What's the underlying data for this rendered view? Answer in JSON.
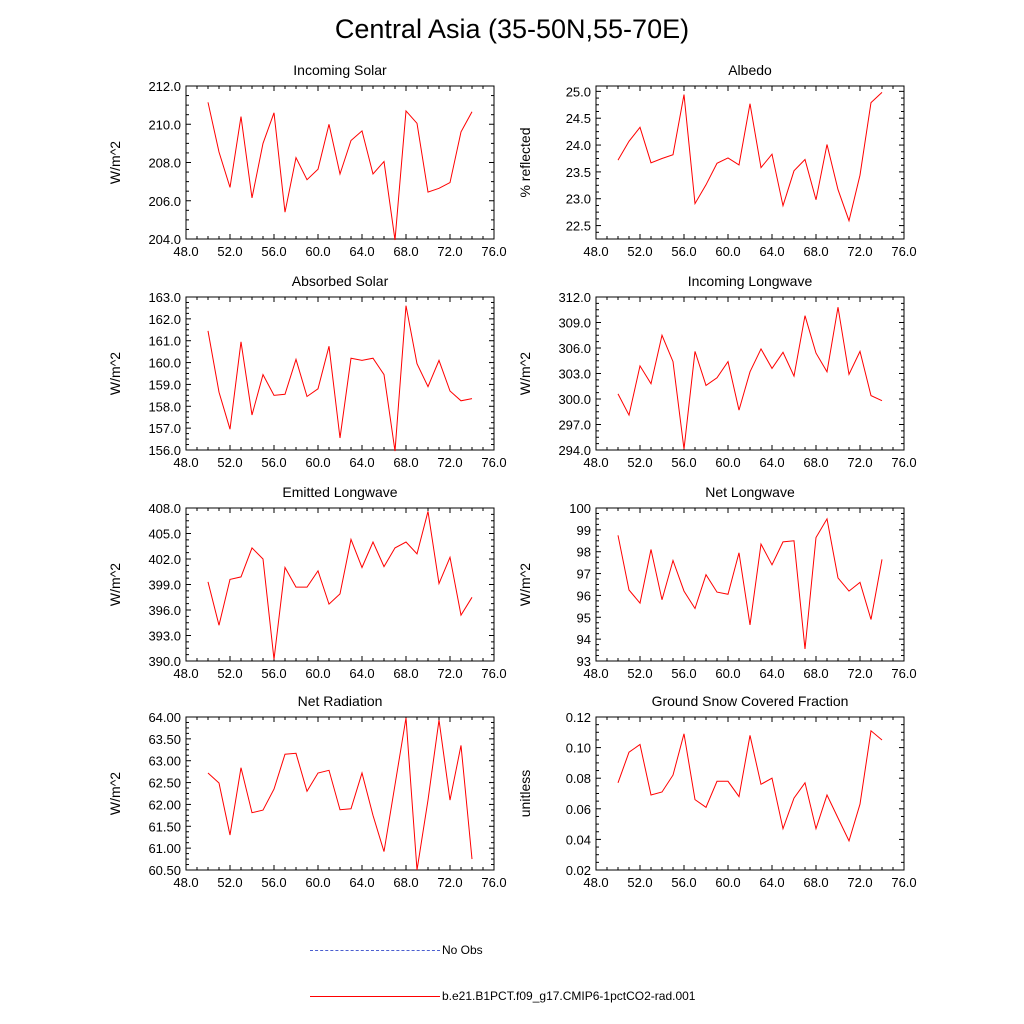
{
  "title": "Central Asia (35-50N,55-70E)",
  "legend": [
    {
      "label": "No Obs",
      "color": "#4a5fd0",
      "style": "dashed"
    },
    {
      "label": "b.e21.B1PCT.f09_g17.CMIP6-1pctCO2-rad.001",
      "color": "#ff0000",
      "style": "solid"
    }
  ],
  "series_color": "#ff0000",
  "chart_data": [
    {
      "type": "line",
      "title": "Incoming Solar",
      "ylabel": "W/m^2",
      "xlabel": "",
      "xlim": [
        48,
        76
      ],
      "ylim": [
        204,
        212
      ],
      "xticks": [
        "48.0",
        "52.0",
        "56.0",
        "60.0",
        "64.0",
        "68.0",
        "72.0",
        "76.0"
      ],
      "yticks": [
        "204.0",
        "206.0",
        "208.0",
        "210.0",
        "212.0"
      ],
      "x": [
        50,
        51,
        52,
        53,
        54,
        55,
        56,
        57,
        58,
        59,
        60,
        61,
        62,
        63,
        64,
        65,
        66,
        67,
        68,
        69,
        70,
        71,
        72,
        73,
        74
      ],
      "values": [
        211.15,
        208.55,
        206.7,
        210.4,
        206.15,
        209.0,
        210.6,
        205.4,
        208.25,
        207.1,
        207.65,
        210.0,
        207.4,
        209.15,
        209.65,
        207.4,
        208.05,
        203.95,
        210.7,
        210.05,
        206.45,
        206.65,
        206.95,
        209.6,
        210.65
      ]
    },
    {
      "type": "line",
      "title": "Albedo",
      "ylabel": "% reflected",
      "xlabel": "",
      "xlim": [
        48,
        76
      ],
      "ylim": [
        22.25,
        25.1
      ],
      "xticks": [
        "48.0",
        "52.0",
        "56.0",
        "60.0",
        "64.0",
        "68.0",
        "72.0",
        "76.0"
      ],
      "yticks": [
        "22.5",
        "23.0",
        "23.5",
        "24.0",
        "24.5",
        "25.0"
      ],
      "x": [
        50,
        51,
        52,
        53,
        54,
        55,
        56,
        57,
        58,
        59,
        60,
        61,
        62,
        63,
        64,
        65,
        66,
        67,
        68,
        69,
        70,
        71,
        72,
        73,
        74
      ],
      "values": [
        23.72,
        24.07,
        24.33,
        23.67,
        23.75,
        23.82,
        24.94,
        22.91,
        23.26,
        23.66,
        23.76,
        23.63,
        24.77,
        23.58,
        23.83,
        22.87,
        23.52,
        23.73,
        22.98,
        24.01,
        23.17,
        22.59,
        23.44,
        24.79,
        24.98
      ]
    },
    {
      "type": "line",
      "title": "Absorbed Solar",
      "ylabel": "W/m^2",
      "xlabel": "",
      "xlim": [
        48,
        76
      ],
      "ylim": [
        156,
        163
      ],
      "xticks": [
        "48.0",
        "52.0",
        "56.0",
        "60.0",
        "64.0",
        "68.0",
        "72.0",
        "76.0"
      ],
      "yticks": [
        "156.0",
        "157.0",
        "158.0",
        "159.0",
        "160.0",
        "161.0",
        "162.0",
        "163.0"
      ],
      "x": [
        50,
        51,
        52,
        53,
        54,
        55,
        56,
        57,
        58,
        59,
        60,
        61,
        62,
        63,
        64,
        65,
        66,
        67,
        68,
        69,
        70,
        71,
        72,
        73,
        74
      ],
      "values": [
        161.45,
        158.65,
        156.95,
        160.95,
        157.6,
        159.45,
        158.5,
        158.55,
        160.15,
        158.45,
        158.8,
        160.75,
        156.55,
        160.2,
        160.1,
        160.2,
        159.45,
        155.95,
        162.6,
        159.95,
        158.9,
        160.1,
        158.7,
        158.25,
        158.35
      ]
    },
    {
      "type": "line",
      "title": "Incoming Longwave",
      "ylabel": "W/m^2",
      "xlabel": "",
      "xlim": [
        48,
        76
      ],
      "ylim": [
        294,
        312
      ],
      "xticks": [
        "48.0",
        "52.0",
        "56.0",
        "60.0",
        "64.0",
        "68.0",
        "72.0",
        "76.0"
      ],
      "yticks": [
        "294.0",
        "297.0",
        "300.0",
        "303.0",
        "306.0",
        "309.0",
        "312.0"
      ],
      "x": [
        50,
        51,
        52,
        53,
        54,
        55,
        56,
        57,
        58,
        59,
        60,
        61,
        62,
        63,
        64,
        65,
        66,
        67,
        68,
        69,
        70,
        71,
        72,
        73,
        74
      ],
      "values": [
        300.6,
        298.1,
        303.9,
        301.8,
        307.5,
        304.4,
        294.1,
        305.6,
        301.6,
        302.5,
        304.4,
        298.7,
        303.2,
        305.9,
        303.6,
        305.5,
        302.7,
        309.8,
        305.4,
        303.2,
        310.8,
        302.9,
        305.6,
        300.4,
        299.8
      ]
    },
    {
      "type": "line",
      "title": "Emitted Longwave",
      "ylabel": "W/m^2",
      "xlabel": "",
      "xlim": [
        48,
        76
      ],
      "ylim": [
        390,
        408
      ],
      "xticks": [
        "48.0",
        "52.0",
        "56.0",
        "60.0",
        "64.0",
        "68.0",
        "72.0",
        "76.0"
      ],
      "yticks": [
        "390.0",
        "393.0",
        "396.0",
        "399.0",
        "402.0",
        "405.0",
        "408.0"
      ],
      "x": [
        50,
        51,
        52,
        53,
        54,
        55,
        56,
        57,
        58,
        59,
        60,
        61,
        62,
        63,
        64,
        65,
        66,
        67,
        68,
        69,
        70,
        71,
        72,
        73,
        74
      ],
      "values": [
        399.3,
        394.2,
        399.6,
        399.9,
        403.3,
        402.0,
        390.2,
        401.0,
        398.7,
        398.7,
        400.6,
        396.7,
        397.9,
        404.3,
        401.0,
        404.0,
        401.1,
        403.3,
        404.0,
        402.6,
        407.6,
        399.1,
        402.2,
        395.4,
        397.5
      ]
    },
    {
      "type": "line",
      "title": "Net Longwave",
      "ylabel": "W/m^2",
      "xlabel": "",
      "xlim": [
        48,
        76
      ],
      "ylim": [
        93,
        100
      ],
      "xticks": [
        "48.0",
        "52.0",
        "56.0",
        "60.0",
        "64.0",
        "68.0",
        "72.0",
        "76.0"
      ],
      "yticks": [
        "93",
        "94",
        "95",
        "96",
        "97",
        "98",
        "99",
        "100"
      ],
      "x": [
        50,
        51,
        52,
        53,
        54,
        55,
        56,
        57,
        58,
        59,
        60,
        61,
        62,
        63,
        64,
        65,
        66,
        67,
        68,
        69,
        70,
        71,
        72,
        73,
        74
      ],
      "values": [
        98.75,
        96.25,
        95.65,
        98.1,
        95.8,
        97.6,
        96.2,
        95.4,
        96.95,
        96.15,
        96.05,
        97.95,
        94.65,
        98.35,
        97.4,
        98.45,
        98.5,
        93.55,
        98.65,
        99.5,
        96.8,
        96.2,
        96.6,
        94.9,
        97.65
      ]
    },
    {
      "type": "line",
      "title": "Net Radiation",
      "ylabel": "W/m^2",
      "xlabel": "",
      "xlim": [
        48,
        76
      ],
      "ylim": [
        60.5,
        64.0
      ],
      "xticks": [
        "48.0",
        "52.0",
        "56.0",
        "60.0",
        "64.0",
        "68.0",
        "72.0",
        "76.0"
      ],
      "yticks": [
        "60.50",
        "61.00",
        "61.50",
        "62.00",
        "62.50",
        "63.00",
        "63.50",
        "64.00"
      ],
      "x": [
        50,
        51,
        52,
        53,
        54,
        55,
        56,
        57,
        58,
        59,
        60,
        61,
        62,
        63,
        64,
        65,
        66,
        67,
        68,
        69,
        70,
        71,
        72,
        73,
        74
      ],
      "values": [
        62.72,
        62.49,
        61.3,
        62.84,
        61.81,
        61.87,
        62.35,
        63.15,
        63.17,
        62.3,
        62.72,
        62.78,
        61.88,
        61.9,
        62.72,
        61.75,
        60.92,
        62.45,
        63.98,
        60.5,
        62.1,
        63.93,
        62.1,
        63.35,
        60.75
      ]
    },
    {
      "type": "line",
      "title": "Ground Snow Covered Fraction",
      "ylabel": "unitless",
      "xlabel": "",
      "xlim": [
        48,
        76
      ],
      "ylim": [
        0.02,
        0.12
      ],
      "xticks": [
        "48.0",
        "52.0",
        "56.0",
        "60.0",
        "64.0",
        "68.0",
        "72.0",
        "76.0"
      ],
      "yticks": [
        "0.02",
        "0.04",
        "0.06",
        "0.08",
        "0.10",
        "0.12"
      ],
      "x": [
        50,
        51,
        52,
        53,
        54,
        55,
        56,
        57,
        58,
        59,
        60,
        61,
        62,
        63,
        64,
        65,
        66,
        67,
        68,
        69,
        70,
        71,
        72,
        73,
        74
      ],
      "values": [
        0.077,
        0.097,
        0.102,
        0.069,
        0.071,
        0.082,
        0.109,
        0.066,
        0.061,
        0.078,
        0.078,
        0.068,
        0.108,
        0.076,
        0.08,
        0.047,
        0.067,
        0.077,
        0.047,
        0.069,
        0.054,
        0.039,
        0.063,
        0.111,
        0.105
      ]
    }
  ]
}
